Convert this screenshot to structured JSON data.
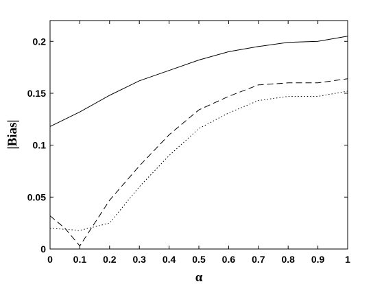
{
  "chart_data": {
    "type": "line",
    "title": "",
    "xlabel": "α",
    "ylabel": "|Bias|",
    "xlim": [
      0,
      1
    ],
    "ylim": [
      0,
      0.22
    ],
    "x_ticks": [
      0,
      0.1,
      0.2,
      0.3,
      0.4,
      0.5,
      0.6,
      0.7,
      0.8,
      0.9,
      1
    ],
    "x_tick_labels": [
      "0",
      "0.1",
      "0.2",
      "0.3",
      "0.4",
      "0.5",
      "0.6",
      "0.7",
      "0.8",
      "0.9",
      "1"
    ],
    "y_ticks": [
      0,
      0.05,
      0.1,
      0.15,
      0.2
    ],
    "y_tick_labels": [
      "0",
      "0.05",
      "0.1",
      "0.15",
      "0.2"
    ],
    "grid": false,
    "legend": "none",
    "series": [
      {
        "style": "solid",
        "color": "#000000",
        "points": [
          [
            0,
            0.118
          ],
          [
            0.1,
            0.132
          ],
          [
            0.2,
            0.148
          ],
          [
            0.3,
            0.162
          ],
          [
            0.4,
            0.172
          ],
          [
            0.5,
            0.182
          ],
          [
            0.6,
            0.19
          ],
          [
            0.7,
            0.195
          ],
          [
            0.8,
            0.199
          ],
          [
            0.9,
            0.2
          ],
          [
            1.0,
            0.205
          ]
        ]
      },
      {
        "style": "dashed",
        "color": "#000000",
        "points": [
          [
            0,
            0.032
          ],
          [
            0.05,
            0.02
          ],
          [
            0.1,
            0.003
          ],
          [
            0.2,
            0.047
          ],
          [
            0.3,
            0.08
          ],
          [
            0.4,
            0.11
          ],
          [
            0.5,
            0.134
          ],
          [
            0.6,
            0.147
          ],
          [
            0.7,
            0.158
          ],
          [
            0.8,
            0.16
          ],
          [
            0.9,
            0.16
          ],
          [
            1.0,
            0.164
          ]
        ]
      },
      {
        "style": "dotted",
        "color": "#000000",
        "points": [
          [
            0,
            0.02
          ],
          [
            0.1,
            0.018
          ],
          [
            0.2,
            0.025
          ],
          [
            0.3,
            0.06
          ],
          [
            0.4,
            0.09
          ],
          [
            0.5,
            0.116
          ],
          [
            0.6,
            0.131
          ],
          [
            0.7,
            0.143
          ],
          [
            0.8,
            0.147
          ],
          [
            0.9,
            0.147
          ],
          [
            1.0,
            0.152
          ]
        ]
      }
    ]
  }
}
